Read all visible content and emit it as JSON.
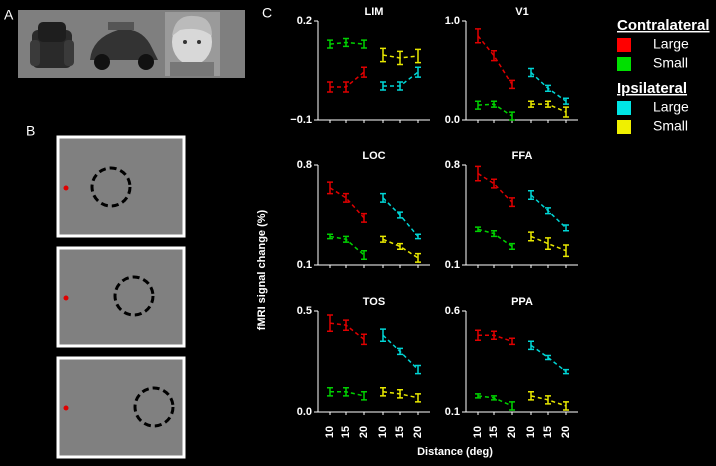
{
  "panel_labels": [
    "A",
    "B",
    "C"
  ],
  "y_label": "fMRI signal change (%)",
  "x_axis": {
    "label": "Distance (deg)",
    "categories": [
      "10",
      "15",
      "20",
      "10",
      "15",
      "20"
    ]
  },
  "legend": {
    "groups": [
      {
        "title": "Contralateral",
        "items": [
          {
            "name": "Large",
            "color": "#ff0000"
          },
          {
            "name": "Small",
            "color": "#00e000"
          }
        ]
      },
      {
        "title": "Ipsilateral",
        "items": [
          {
            "name": "Large",
            "color": "#00e5e5"
          },
          {
            "name": "Small",
            "color": "#f0f000"
          }
        ]
      }
    ]
  },
  "chart_data": [
    {
      "type": "line",
      "title": "LIM",
      "ylim": [
        -0.1,
        0.2
      ],
      "yticks": [
        {
          "value": -0.1,
          "label": "−0.1"
        },
        0.2
      ],
      "series": [
        {
          "color": "#e00000",
          "values": [
            0.0,
            0.0,
            0.045,
            null,
            null,
            null
          ],
          "errors": [
            0.015,
            0.015,
            0.015,
            null,
            null,
            null
          ]
        },
        {
          "color": "#00d000",
          "values": [
            0.13,
            0.135,
            0.13,
            null,
            null,
            null
          ],
          "errors": [
            0.012,
            0.012,
            0.012,
            null,
            null,
            null
          ]
        },
        {
          "color": "#00d5d5",
          "values": [
            null,
            null,
            null,
            0.003,
            0.003,
            0.045
          ],
          "errors": [
            null,
            null,
            null,
            0.012,
            0.012,
            0.015
          ]
        },
        {
          "color": "#e8e800",
          "values": [
            null,
            null,
            null,
            0.097,
            0.088,
            0.094
          ],
          "errors": [
            null,
            null,
            null,
            0.02,
            0.02,
            0.02
          ]
        }
      ]
    },
    {
      "type": "line",
      "title": "V1",
      "ylim": [
        0,
        1
      ],
      "yticks": [
        {
          "value": 0,
          "label": "0.0"
        },
        {
          "value": 1,
          "label": "1.0"
        }
      ],
      "series": [
        {
          "color": "#e00000",
          "values": [
            0.85,
            0.65,
            0.36,
            null,
            null,
            null
          ],
          "errors": [
            0.07,
            0.05,
            0.04,
            null,
            null,
            null
          ]
        },
        {
          "color": "#00d000",
          "values": [
            0.15,
            0.16,
            0.04,
            null,
            null,
            null
          ],
          "errors": [
            0.04,
            0.03,
            0.04,
            null,
            null,
            null
          ]
        },
        {
          "color": "#00d5d5",
          "values": [
            null,
            null,
            null,
            0.48,
            0.32,
            0.19
          ],
          "errors": [
            null,
            null,
            null,
            0.04,
            0.03,
            0.03
          ]
        },
        {
          "color": "#e8e800",
          "values": [
            null,
            null,
            null,
            0.16,
            0.16,
            0.08
          ],
          "errors": [
            null,
            null,
            null,
            0.03,
            0.03,
            0.05
          ]
        }
      ]
    },
    {
      "type": "line",
      "title": "LOC",
      "ylim": [
        0.1,
        0.8
      ],
      "yticks": [
        0.1,
        0.8
      ],
      "series": [
        {
          "color": "#e00000",
          "values": [
            0.64,
            0.57,
            0.43,
            null,
            null,
            null
          ],
          "errors": [
            0.04,
            0.03,
            0.03,
            null,
            null,
            null
          ]
        },
        {
          "color": "#00d000",
          "values": [
            0.3,
            0.28,
            0.17,
            null,
            null,
            null
          ],
          "errors": [
            0.015,
            0.02,
            0.03,
            null,
            null,
            null
          ]
        },
        {
          "color": "#00d5d5",
          "values": [
            null,
            null,
            null,
            0.57,
            0.45,
            0.3
          ],
          "errors": [
            null,
            null,
            null,
            0.03,
            0.02,
            0.015
          ]
        },
        {
          "color": "#e8e800",
          "values": [
            null,
            null,
            null,
            0.28,
            0.23,
            0.15
          ],
          "errors": [
            null,
            null,
            null,
            0.02,
            0.02,
            0.03
          ]
        }
      ]
    },
    {
      "type": "line",
      "title": "FFA",
      "ylim": [
        0.1,
        0.8
      ],
      "yticks": [
        0.1,
        0.8
      ],
      "series": [
        {
          "color": "#e00000",
          "values": [
            0.74,
            0.67,
            0.54,
            null,
            null,
            null
          ],
          "errors": [
            0.05,
            0.03,
            0.03,
            null,
            null,
            null
          ]
        },
        {
          "color": "#00d000",
          "values": [
            0.35,
            0.32,
            0.23,
            null,
            null,
            null
          ],
          "errors": [
            0.015,
            0.02,
            0.02,
            null,
            null,
            null
          ]
        },
        {
          "color": "#00d5d5",
          "values": [
            null,
            null,
            null,
            0.59,
            0.48,
            0.36
          ],
          "errors": [
            null,
            null,
            null,
            0.03,
            0.02,
            0.02
          ]
        },
        {
          "color": "#e8e800",
          "values": [
            null,
            null,
            null,
            0.3,
            0.25,
            0.2
          ],
          "errors": [
            null,
            null,
            null,
            0.03,
            0.04,
            0.04
          ]
        }
      ]
    },
    {
      "type": "line",
      "title": "TOS",
      "ylim": [
        0,
        0.5
      ],
      "yticks": [
        {
          "value": 0,
          "label": "0.0"
        },
        0.5
      ],
      "series": [
        {
          "color": "#e00000",
          "values": [
            0.44,
            0.43,
            0.36,
            null,
            null,
            null
          ],
          "errors": [
            0.04,
            0.025,
            0.025,
            null,
            null,
            null
          ]
        },
        {
          "color": "#00d000",
          "values": [
            0.1,
            0.1,
            0.08,
            null,
            null,
            null
          ],
          "errors": [
            0.02,
            0.02,
            0.02,
            null,
            null,
            null
          ]
        },
        {
          "color": "#00d5d5",
          "values": [
            null,
            null,
            null,
            0.38,
            0.3,
            0.21
          ],
          "errors": [
            null,
            null,
            null,
            0.03,
            0.015,
            0.02
          ]
        },
        {
          "color": "#e8e800",
          "values": [
            null,
            null,
            null,
            0.1,
            0.09,
            0.07
          ],
          "errors": [
            null,
            null,
            null,
            0.02,
            0.02,
            0.02
          ]
        }
      ]
    },
    {
      "type": "line",
      "title": "PPA",
      "ylim": [
        0.1,
        0.6
      ],
      "yticks": [
        0.1,
        0.6
      ],
      "series": [
        {
          "color": "#e00000",
          "values": [
            0.48,
            0.48,
            0.45,
            null,
            null,
            null
          ],
          "errors": [
            0.025,
            0.02,
            0.015,
            null,
            null,
            null
          ]
        },
        {
          "color": "#00d000",
          "values": [
            0.18,
            0.17,
            0.13,
            null,
            null,
            null
          ],
          "errors": [
            0.01,
            0.01,
            0.02,
            null,
            null,
            null
          ]
        },
        {
          "color": "#00d5d5",
          "values": [
            null,
            null,
            null,
            0.43,
            0.37,
            0.3
          ],
          "errors": [
            null,
            null,
            null,
            0.02,
            0.01,
            0.01
          ]
        },
        {
          "color": "#e8e800",
          "values": [
            null,
            null,
            null,
            0.18,
            0.16,
            0.13
          ],
          "errors": [
            null,
            null,
            null,
            0.02,
            0.02,
            0.02
          ]
        }
      ]
    }
  ]
}
